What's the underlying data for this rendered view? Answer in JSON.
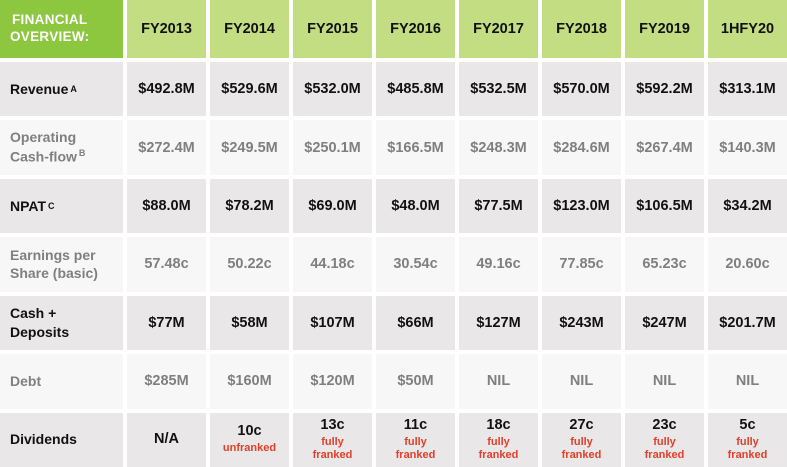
{
  "header": {
    "title_line1": "FINANCIAL",
    "title_line2": "OVERVIEW:",
    "years": [
      "FY2013",
      "FY2014",
      "FY2015",
      "FY2016",
      "FY2017",
      "FY2018",
      "FY2019",
      "1HFY20"
    ]
  },
  "rows": {
    "revenue": {
      "label": "Revenue",
      "sup": "A",
      "values": [
        "$492.8M",
        "$529.6M",
        "$532.0M",
        "$485.8M",
        "$532.5M",
        "$570.0M",
        "$592.2M",
        "$313.1M"
      ]
    },
    "opcash": {
      "label_line1": "Operating",
      "label_line2": "Cash-flow",
      "sup": "B",
      "values": [
        "$272.4M",
        "$249.5M",
        "$250.1M",
        "$166.5M",
        "$248.3M",
        "$284.6M",
        "$267.4M",
        "$140.3M"
      ]
    },
    "npat": {
      "label": "NPAT",
      "sup": "C",
      "values": [
        "$88.0M",
        "$78.2M",
        "$69.0M",
        "$48.0M",
        "$77.5M",
        "$123.0M",
        "$106.5M",
        "$34.2M"
      ]
    },
    "eps": {
      "label_line1": "Earnings per",
      "label_line2": "Share (basic)",
      "values": [
        "57.48c",
        "50.22c",
        "44.18c",
        "30.54c",
        "49.16c",
        "77.85c",
        "65.23c",
        "20.60c"
      ]
    },
    "cash": {
      "label_line1": "Cash +",
      "label_line2": "Deposits",
      "values": [
        "$77M",
        "$58M",
        "$107M",
        "$66M",
        "$127M",
        "$243M",
        "$247M",
        "$201.7M"
      ]
    },
    "debt": {
      "label": "Debt",
      "values": [
        "$285M",
        "$160M",
        "$120M",
        "$50M",
        "NIL",
        "NIL",
        "NIL",
        "NIL"
      ]
    },
    "dividends": {
      "label": "Dividends",
      "values": [
        {
          "main": "N/A",
          "note1": "",
          "note2": ""
        },
        {
          "main": "10c",
          "note1": "unfranked",
          "note2": ""
        },
        {
          "main": "13c",
          "note1": "fully",
          "note2": "franked"
        },
        {
          "main": "11c",
          "note1": "fully",
          "note2": "franked"
        },
        {
          "main": "18c",
          "note1": "fully",
          "note2": "franked"
        },
        {
          "main": "27c",
          "note1": "fully",
          "note2": "franked"
        },
        {
          "main": "23c",
          "note1": "fully",
          "note2": "franked"
        },
        {
          "main": "5c",
          "note1": "fully",
          "note2": "franked"
        }
      ]
    }
  },
  "colors": {
    "header_dark": "#8dc63f",
    "header_light": "#c3dd83",
    "row_odd": "#e9e7e7",
    "row_even": "#f7f7f7",
    "franking_note": "#e0402a"
  }
}
